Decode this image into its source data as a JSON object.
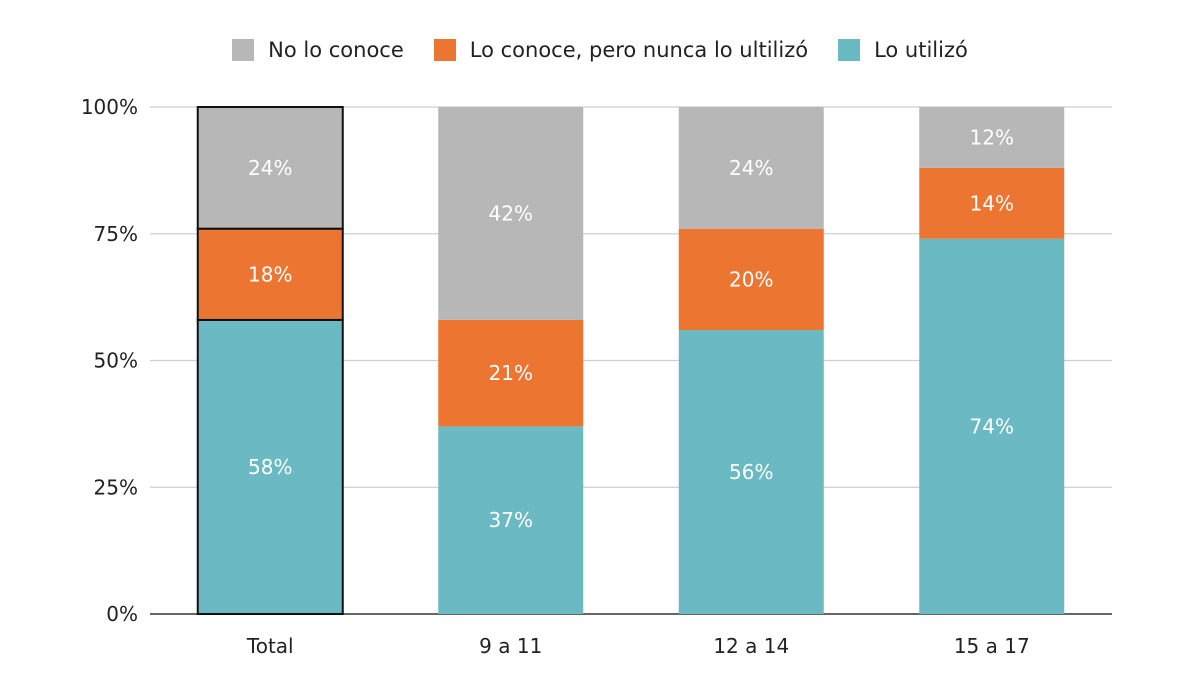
{
  "chart_data": {
    "type": "bar",
    "stacked": true,
    "percent": true,
    "categories": [
      "Total",
      "9 a 11",
      "12 a 14",
      "15 a 17"
    ],
    "series": [
      {
        "name": "Lo utilizó",
        "color": "#6ab9c3",
        "values": [
          58,
          37,
          56,
          74
        ]
      },
      {
        "name": "Lo conoce, pero nunca lo ultilizó",
        "color": "#ed7532",
        "values": [
          18,
          21,
          20,
          14
        ]
      },
      {
        "name": "No lo conoce",
        "color": "#b7b7b7",
        "values": [
          24,
          42,
          24,
          12
        ]
      }
    ],
    "legend_order": [
      "No lo conoce",
      "Lo conoce, pero nunca lo ultilizó",
      "Lo utilizó"
    ],
    "data_labels": [
      [
        "58%",
        "37%",
        "56%",
        "74%"
      ],
      [
        "18%",
        "21%",
        "20%",
        "14%"
      ],
      [
        "24%",
        "42%",
        "24%",
        "12%"
      ]
    ],
    "yticks": [
      "0%",
      "25%",
      "50%",
      "75%",
      "100%"
    ],
    "ylim": [
      0,
      100
    ],
    "grid": true,
    "legend_position": "top",
    "highlighted_category": "Total",
    "title": "",
    "xlabel": "",
    "ylabel": ""
  }
}
